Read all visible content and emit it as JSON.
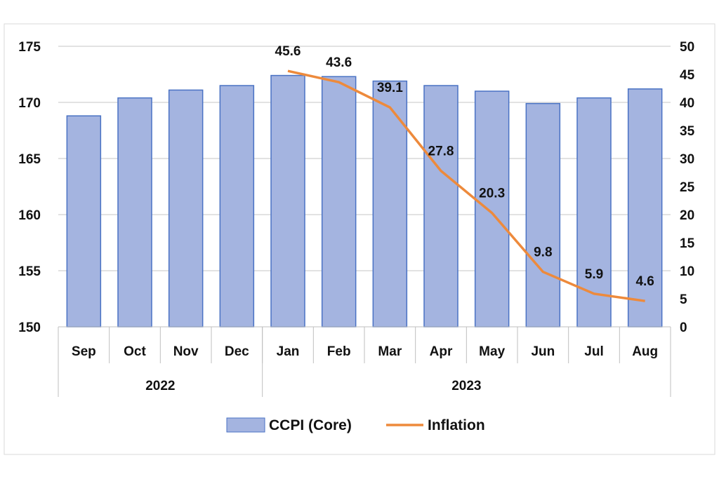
{
  "chart_data": {
    "type": "bar",
    "title": "",
    "categories": [
      "Sep",
      "Oct",
      "Nov",
      "Dec",
      "Jan",
      "Feb",
      "Mar",
      "Apr",
      "May",
      "Jun",
      "Jul",
      "Aug"
    ],
    "groups": [
      {
        "label": "2022",
        "span": 4
      },
      {
        "label": "2023",
        "span": 8
      }
    ],
    "series": [
      {
        "name": "CCPI (Core)",
        "type": "bar",
        "axis": "left",
        "color": "#a4b4e0",
        "values": [
          168.8,
          170.4,
          171.1,
          171.5,
          172.4,
          172.3,
          171.9,
          171.5,
          171.0,
          169.9,
          170.4,
          171.2
        ]
      },
      {
        "name": "Inflation",
        "type": "line",
        "axis": "right",
        "color": "#ed8a3c",
        "values": [
          null,
          null,
          null,
          null,
          45.6,
          43.6,
          39.1,
          27.8,
          20.3,
          9.8,
          5.9,
          4.6
        ],
        "labels": [
          "",
          "",
          "",
          "",
          "45.6",
          "43.6",
          "39.1",
          "27.8",
          "20.3",
          "9.8",
          "5.9",
          "4.6"
        ]
      }
    ],
    "y_left": {
      "range": [
        150,
        175
      ],
      "ticks": [
        "150",
        "155",
        "160",
        "165",
        "170",
        "175"
      ]
    },
    "y_right": {
      "range": [
        0,
        50
      ],
      "ticks": [
        "0",
        "5",
        "10",
        "15",
        "20",
        "25",
        "30",
        "35",
        "40",
        "45",
        "50"
      ]
    },
    "grid": true,
    "legend_position": "bottom"
  }
}
